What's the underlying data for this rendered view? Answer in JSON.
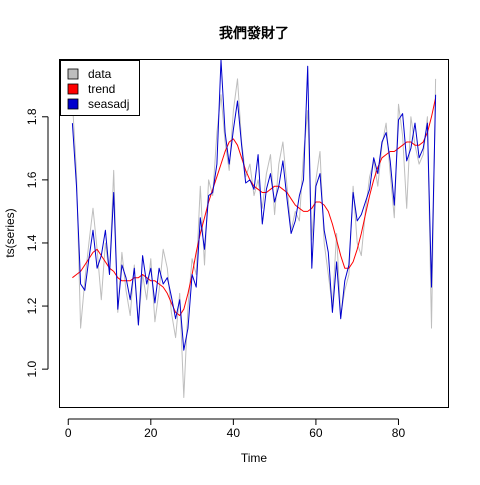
{
  "chart_data": {
    "type": "line",
    "title": "我們發財了",
    "xlabel": "Time",
    "ylabel": "ts(series)",
    "xlim": [
      -2,
      92
    ],
    "ylim": [
      0.88,
      1.98
    ],
    "xticks": [
      0,
      20,
      40,
      60,
      80
    ],
    "yticks": [
      1.0,
      1.2,
      1.4,
      1.6,
      1.8
    ],
    "xtick_labels": [
      "0",
      "20",
      "40",
      "60",
      "80"
    ],
    "ytick_labels": [
      "1.0",
      "1.2",
      "1.4",
      "1.6",
      "1.8"
    ],
    "grid": false,
    "legend_position": "top-left",
    "legend": [
      {
        "label": "data",
        "color": "#bebebe"
      },
      {
        "label": "trend",
        "color": "#ff0000"
      },
      {
        "label": "seasadj",
        "color": "#0000cd"
      }
    ],
    "x": [
      1,
      2,
      3,
      4,
      5,
      6,
      7,
      8,
      9,
      10,
      11,
      12,
      13,
      14,
      15,
      16,
      17,
      18,
      19,
      20,
      21,
      22,
      23,
      24,
      25,
      26,
      27,
      28,
      29,
      30,
      31,
      32,
      33,
      34,
      35,
      36,
      37,
      38,
      39,
      40,
      41,
      42,
      43,
      44,
      45,
      46,
      47,
      48,
      49,
      50,
      51,
      52,
      53,
      54,
      55,
      56,
      57,
      58,
      59,
      60,
      61,
      62,
      63,
      64,
      65,
      66,
      67,
      68,
      69,
      70,
      71,
      72,
      73,
      74,
      75,
      76,
      77,
      78,
      79,
      80,
      81,
      82,
      83,
      84,
      85,
      86,
      87,
      88,
      89
    ],
    "series": [
      {
        "name": "data",
        "color": "#bebebe",
        "values": [
          1.85,
          1.62,
          1.13,
          1.28,
          1.4,
          1.51,
          1.38,
          1.22,
          1.4,
          1.3,
          1.63,
          1.18,
          1.37,
          1.25,
          1.17,
          1.33,
          1.14,
          1.3,
          1.22,
          1.35,
          1.15,
          1.25,
          1.38,
          1.32,
          1.18,
          1.1,
          1.24,
          0.91,
          1.2,
          1.35,
          1.3,
          1.58,
          1.33,
          1.6,
          1.55,
          1.75,
          1.87,
          1.72,
          1.63,
          1.82,
          1.92,
          1.72,
          1.61,
          1.65,
          1.55,
          1.6,
          1.51,
          1.62,
          1.68,
          1.49,
          1.65,
          1.72,
          1.58,
          1.44,
          1.5,
          1.47,
          1.68,
          1.82,
          1.41,
          1.6,
          1.69,
          1.4,
          1.3,
          1.2,
          1.43,
          1.17,
          1.25,
          1.3,
          1.58,
          1.4,
          1.36,
          1.5,
          1.61,
          1.66,
          1.58,
          1.71,
          1.78,
          1.62,
          1.48,
          1.84,
          1.74,
          1.51,
          1.8,
          1.71,
          1.65,
          1.68,
          1.8,
          1.13,
          1.92
        ]
      },
      {
        "name": "trend",
        "color": "#ff0000",
        "values": [
          1.29,
          1.3,
          1.31,
          1.33,
          1.35,
          1.37,
          1.38,
          1.36,
          1.34,
          1.32,
          1.31,
          1.29,
          1.28,
          1.28,
          1.28,
          1.29,
          1.29,
          1.3,
          1.29,
          1.28,
          1.28,
          1.27,
          1.26,
          1.24,
          1.21,
          1.18,
          1.17,
          1.19,
          1.24,
          1.3,
          1.37,
          1.43,
          1.48,
          1.53,
          1.57,
          1.61,
          1.65,
          1.69,
          1.72,
          1.73,
          1.71,
          1.67,
          1.63,
          1.6,
          1.58,
          1.57,
          1.56,
          1.56,
          1.57,
          1.58,
          1.58,
          1.57,
          1.56,
          1.54,
          1.52,
          1.51,
          1.5,
          1.5,
          1.51,
          1.53,
          1.53,
          1.52,
          1.5,
          1.46,
          1.41,
          1.36,
          1.32,
          1.32,
          1.34,
          1.38,
          1.43,
          1.49,
          1.55,
          1.6,
          1.64,
          1.67,
          1.68,
          1.69,
          1.69,
          1.7,
          1.71,
          1.72,
          1.72,
          1.71,
          1.71,
          1.72,
          1.75,
          1.8,
          1.86
        ]
      },
      {
        "name": "seasadj",
        "color": "#0000cd",
        "values": [
          1.78,
          1.58,
          1.27,
          1.25,
          1.35,
          1.44,
          1.32,
          1.36,
          1.44,
          1.3,
          1.56,
          1.19,
          1.33,
          1.29,
          1.22,
          1.32,
          1.14,
          1.36,
          1.27,
          1.32,
          1.21,
          1.32,
          1.27,
          1.29,
          1.23,
          1.16,
          1.22,
          1.06,
          1.13,
          1.3,
          1.26,
          1.48,
          1.38,
          1.55,
          1.56,
          1.65,
          1.98,
          1.75,
          1.65,
          1.76,
          1.85,
          1.71,
          1.59,
          1.6,
          1.57,
          1.68,
          1.46,
          1.57,
          1.62,
          1.53,
          1.58,
          1.66,
          1.54,
          1.43,
          1.47,
          1.55,
          1.6,
          1.96,
          1.32,
          1.58,
          1.62,
          1.44,
          1.37,
          1.18,
          1.34,
          1.16,
          1.28,
          1.33,
          1.56,
          1.47,
          1.49,
          1.53,
          1.57,
          1.67,
          1.62,
          1.72,
          1.75,
          1.66,
          1.52,
          1.79,
          1.81,
          1.66,
          1.7,
          1.78,
          1.67,
          1.7,
          1.78,
          1.26,
          1.87
        ]
      }
    ]
  }
}
